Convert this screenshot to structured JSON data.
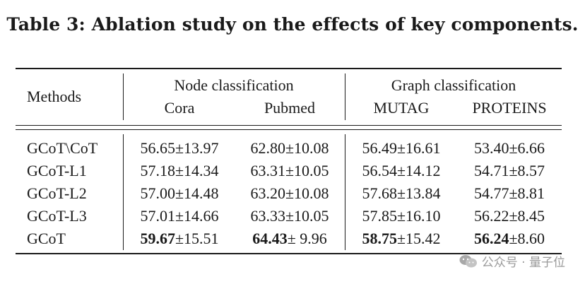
{
  "caption": "Table 3: Ablation study on the effects of key components.",
  "header": {
    "methods": "Methods",
    "group1": "Node classification",
    "group2": "Graph classification",
    "columns": [
      "Cora",
      "Pubmed",
      "MUTAG",
      "PROTEINS"
    ]
  },
  "rows": [
    {
      "method": "GCoT\\CoT",
      "cells": [
        {
          "mean": "56.65",
          "std": "±13.97",
          "bold": false
        },
        {
          "mean": "62.80",
          "std": "±10.08",
          "bold": false
        },
        {
          "mean": "56.49",
          "std": "±16.61",
          "bold": false
        },
        {
          "mean": "53.40",
          "std": "±6.66",
          "bold": false
        }
      ]
    },
    {
      "method": "GCoT-L1",
      "cells": [
        {
          "mean": "57.18",
          "std": "±14.34",
          "bold": false
        },
        {
          "mean": "63.31",
          "std": "±10.05",
          "bold": false
        },
        {
          "mean": "56.54",
          "std": "±14.12",
          "bold": false
        },
        {
          "mean": "54.71",
          "std": "±8.57",
          "bold": false
        }
      ]
    },
    {
      "method": "GCoT-L2",
      "cells": [
        {
          "mean": "57.00",
          "std": "±14.48",
          "bold": false
        },
        {
          "mean": "63.20",
          "std": "±10.08",
          "bold": false
        },
        {
          "mean": "57.68",
          "std": "±13.84",
          "bold": false
        },
        {
          "mean": "54.77",
          "std": "±8.81",
          "bold": false
        }
      ]
    },
    {
      "method": "GCoT-L3",
      "cells": [
        {
          "mean": "57.01",
          "std": "±14.66",
          "bold": false
        },
        {
          "mean": "63.33",
          "std": "±10.05",
          "bold": false
        },
        {
          "mean": "57.85",
          "std": "±16.10",
          "bold": false
        },
        {
          "mean": "56.22",
          "std": "±8.45",
          "bold": false
        }
      ]
    },
    {
      "method": "GCoT",
      "cells": [
        {
          "mean": "59.67",
          "std": "±15.51",
          "bold": true
        },
        {
          "mean": "64.43",
          "std": "± 9.96",
          "bold": true
        },
        {
          "mean": "58.75",
          "std": "±15.42",
          "bold": true
        },
        {
          "mean": "56.24",
          "std": "±8.60",
          "bold": true
        }
      ]
    }
  ],
  "watermark": {
    "text": "公众号 · 量子位",
    "icon": "wechat-icon"
  }
}
